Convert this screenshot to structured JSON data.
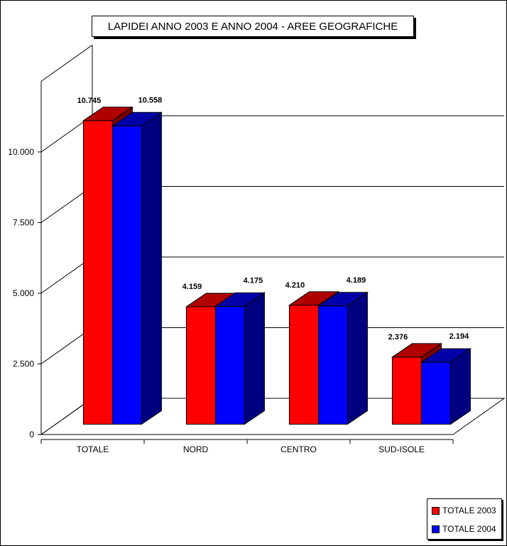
{
  "chart_data": {
    "type": "bar",
    "title": "LAPIDEI ANNO 2003 E ANNO 2004 - AREE GEOGRAFICHE",
    "categories": [
      "TOTALE",
      "NORD",
      "CENTRO",
      "SUD-ISOLE"
    ],
    "series": [
      {
        "name": "TOTALE 2003",
        "values": [
          10745,
          4159,
          4210,
          2376
        ],
        "labels": [
          "10.745",
          "4.159",
          "4.210",
          "2.376"
        ],
        "color": "#ff0000"
      },
      {
        "name": "TOTALE 2004",
        "values": [
          10558,
          4175,
          4189,
          2194
        ],
        "labels": [
          "10.558",
          "4.175",
          "4.189",
          "2.194"
        ],
        "color": "#0000ff"
      }
    ],
    "y_ticks": [
      0,
      2500,
      5000,
      7500,
      10000
    ],
    "y_tick_labels": [
      "0",
      "2.500",
      "5.000",
      "7.500",
      "10.000"
    ],
    "ylim": [
      0,
      12500
    ],
    "grid": true,
    "legend_position": "bottom-right",
    "style": "3d-clustered-column"
  }
}
